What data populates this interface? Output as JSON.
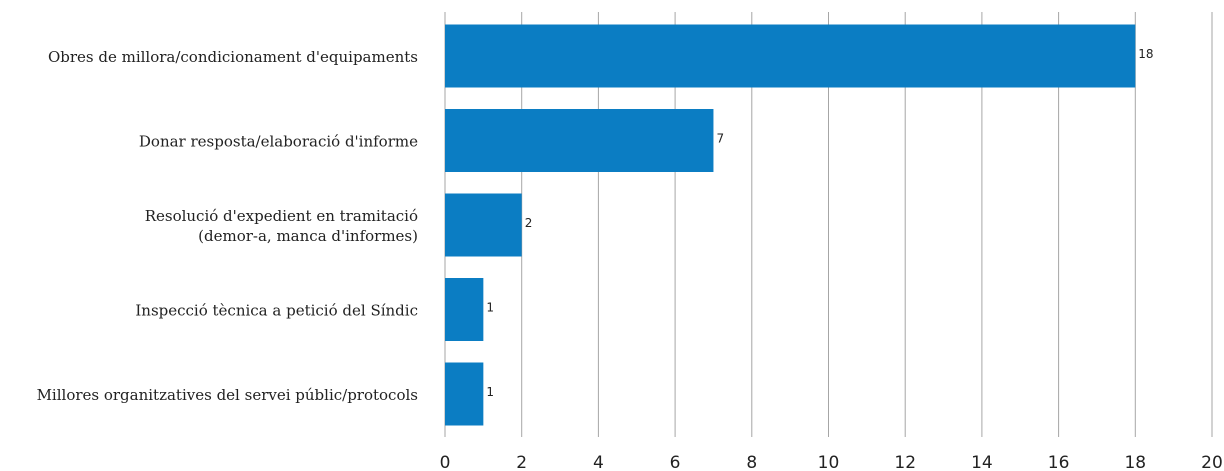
{
  "chart_data": {
    "type": "bar",
    "orientation": "horizontal",
    "categories": [
      [
        "Obres de millora/condicionament d'equipaments"
      ],
      [
        "Donar resposta/elaboració d'informe"
      ],
      [
        "Resolució d'expedient en tramitació",
        "(demor-a, manca d'informes)"
      ],
      [
        "Inspecció tècnica a petició del Síndic"
      ],
      [
        "Millores organitzatives del servei públic/protocols"
      ]
    ],
    "values": [
      18,
      7,
      2,
      1,
      1
    ],
    "data_labels": [
      "18",
      "7",
      "2",
      "1",
      "1"
    ],
    "xlim": [
      0,
      20
    ],
    "x_ticks": [
      "0",
      "2",
      "4",
      "6",
      "8",
      "10",
      "12",
      "14",
      "16",
      "18",
      "20"
    ],
    "bar_color": "#0b7dc3",
    "grid": true,
    "legend": "none",
    "title": "",
    "xlabel": "",
    "ylabel": ""
  }
}
